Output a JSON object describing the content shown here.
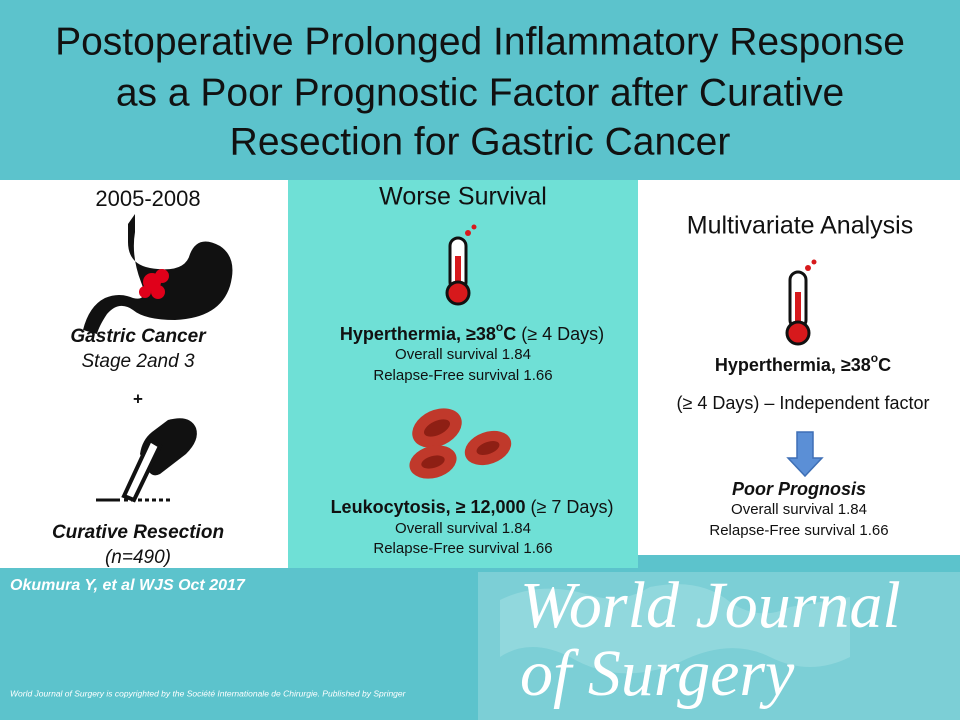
{
  "header": {
    "title_lines": [
      "Postoperative Prolonged Inflammatory Response",
      "as a Poor Prognostic Factor after Curative",
      "Resection for Gastric Cancer"
    ]
  },
  "left": {
    "years": "2005-2008",
    "diagnosis": "Gastric Cancer",
    "stage": "Stage 2and 3",
    "plus": "+",
    "procedure": "Curative Resection",
    "n": "(n=490)"
  },
  "middle": {
    "heading": "Worse Survival",
    "hyperthermia": {
      "label": "Hyperthermia, ≥38",
      "degree": "o",
      "unit": "C",
      "duration": " (≥ 4 Days)",
      "overall": "Overall survival  1.84",
      "relapse": "Relapse-Free survival 1.66"
    },
    "leukocytosis": {
      "label": "Leukocytosis, ≥ 12,000",
      "duration": " (≥ 7 Days)",
      "overall": "Overall survival  1.84",
      "relapse": "Relapse-Free survival 1.66"
    }
  },
  "right": {
    "heading": "Multivariate Analysis",
    "label": "Hyperthermia, ≥38",
    "degree": "o",
    "unit": "C",
    "detail": "(≥ 4 Days) – Independent factor",
    "outcome": "Poor Prognosis",
    "overall": "Overall survival  1.84",
    "relapse": "Relapse-Free survival 1.66"
  },
  "footer": {
    "citation": "Okumura Y, et al WJS Oct 2017",
    "journal_lines": [
      "World Journal",
      "of Surgery"
    ],
    "copyright": "World Journal of Surgery is copyrighted by the Société Internationale de Chirurgie.  Published by Springer"
  }
}
